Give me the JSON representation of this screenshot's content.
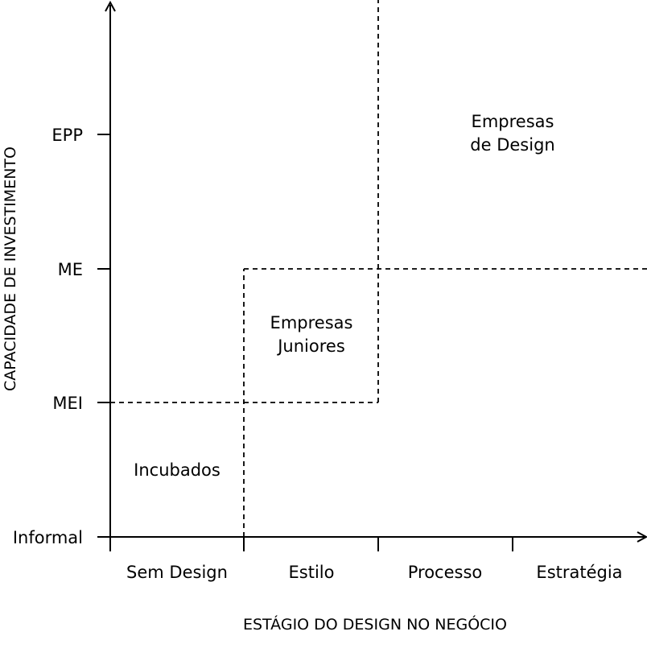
{
  "axes": {
    "x_title": "ESTÁGIO DO DESIGN NO NEGÓCIO",
    "y_title": "CAPACIDADE DE INVESTIMENTO"
  },
  "x_categories": [
    "Sem Design",
    "Estilo",
    "Processo",
    "Estratégia"
  ],
  "y_levels": [
    "Informal",
    "MEI",
    "ME",
    "EPP"
  ],
  "regions": {
    "incubados": "Incubados",
    "juniores": {
      "line1": "Empresas",
      "line2": "Juniores"
    },
    "design": {
      "line1": "Empresas",
      "line2": "de Design"
    }
  }
}
